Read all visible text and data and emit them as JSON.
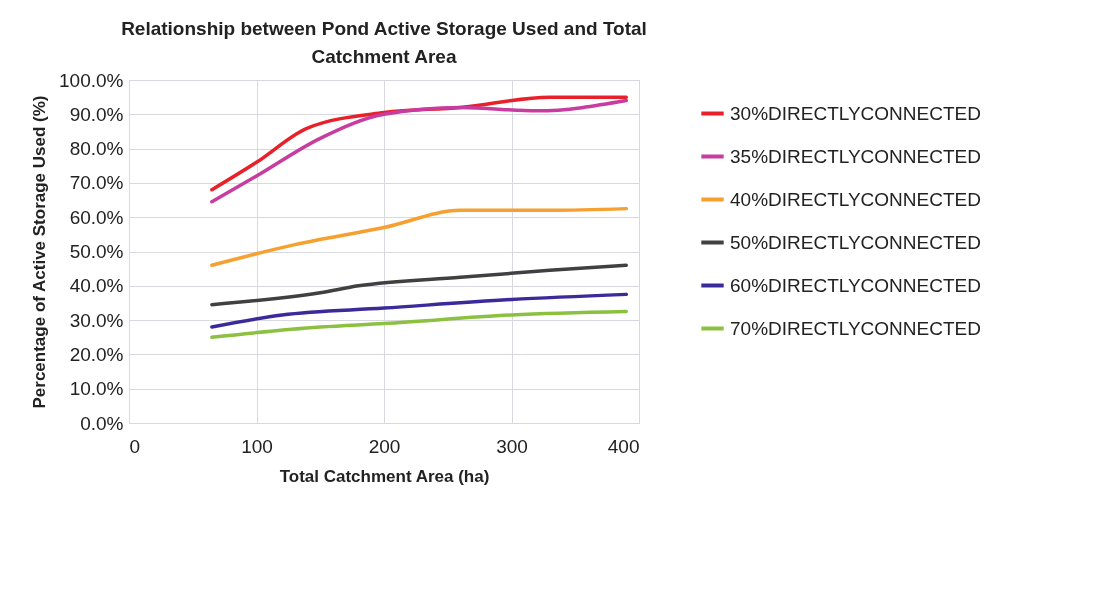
{
  "chart_data": {
    "type": "line",
    "title": "Relationship between Pond Active Storage Used and Total Catchment Area",
    "xlabel": "Total Catchment Area (ha)",
    "ylabel": "Percentage of Active Storage Used (%)",
    "xlim": [
      0,
      400
    ],
    "xticks": [
      0,
      100,
      200,
      300,
      400
    ],
    "ylim": [
      0,
      100
    ],
    "yticks": [
      {
        "value": 0,
        "label": "0.0%"
      },
      {
        "value": 10,
        "label": "10.0%"
      },
      {
        "value": 20,
        "label": "20.0%"
      },
      {
        "value": 30,
        "label": "30.0%"
      },
      {
        "value": 40,
        "label": "40.0%"
      },
      {
        "value": 50,
        "label": "50.0%"
      },
      {
        "value": 60,
        "label": "60.0%"
      },
      {
        "value": 70,
        "label": "70.0%"
      },
      {
        "value": 80,
        "label": "80.0%"
      },
      {
        "value": 90,
        "label": "90.0%"
      },
      {
        "value": 100,
        "label": "100.0%"
      }
    ],
    "grid": true,
    "legend": "right",
    "line_style": "solid",
    "marker": "none",
    "series": [
      {
        "name": "30%DIRECTLYCONNECTED",
        "color": "#e8202a",
        "x": [
          65,
          100,
          140,
          200,
          260,
          330,
          390
        ],
        "values": [
          68,
          76,
          86,
          90.5,
          92,
          95,
          95
        ]
      },
      {
        "name": "35%DIRECTLYCONNECTED",
        "color": "#c83ca0",
        "x": [
          65,
          100,
          150,
          200,
          260,
          320,
          390
        ],
        "values": [
          64.5,
          72,
          83,
          90,
          92,
          91,
          94
        ]
      },
      {
        "name": "40%DIRECTLYCONNECTED",
        "color": "#f5a030",
        "x": [
          65,
          130,
          200,
          260,
          330,
          390
        ],
        "values": [
          46,
          52,
          57,
          62,
          62,
          62.5
        ]
      },
      {
        "name": "50%DIRECTLYCONNECTED",
        "color": "#404040",
        "x": [
          65,
          150,
          180,
          260,
          330,
          390
        ],
        "values": [
          34.5,
          38,
          40,
          42.5,
          44.5,
          46
        ]
      },
      {
        "name": "60%DIRECTLYCONNECTED",
        "color": "#3a2a9a",
        "x": [
          65,
          120,
          200,
          300,
          390
        ],
        "values": [
          28,
          31.5,
          33.5,
          36,
          37.5
        ]
      },
      {
        "name": "70%DIRECTLYCONNECTED",
        "color": "#8cc040",
        "x": [
          65,
          150,
          200,
          300,
          390
        ],
        "values": [
          25,
          28,
          29,
          31.5,
          32.5
        ]
      }
    ]
  }
}
